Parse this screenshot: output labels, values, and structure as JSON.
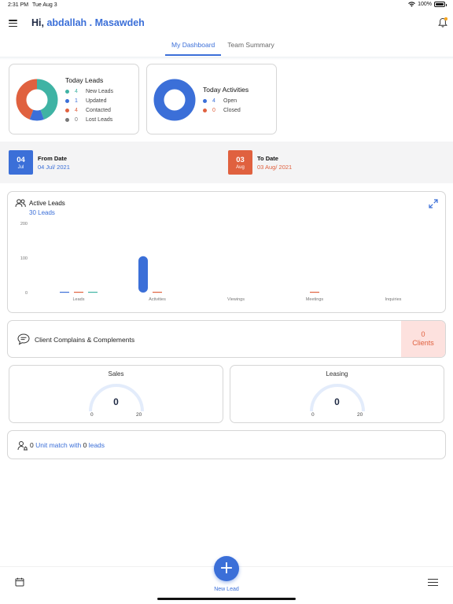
{
  "status_bar": {
    "time": "2:31 PM",
    "date": "Tue Aug 3",
    "battery": "100%"
  },
  "header": {
    "greeting": "Hi,",
    "user_name": "abdallah . Masawdeh"
  },
  "tabs": [
    {
      "label": "My Dashboard",
      "active": true
    },
    {
      "label": "Team Summary",
      "active": false
    }
  ],
  "today_leads": {
    "title": "Today Leads",
    "items": [
      {
        "count": "4",
        "label": "New Leads",
        "color": "#3fb3a4"
      },
      {
        "count": "1",
        "label": "Updated",
        "color": "#3b6fd8"
      },
      {
        "count": "4",
        "label": "Contacted",
        "color": "#e0613f"
      },
      {
        "count": "0",
        "label": "Lost Leads",
        "color": "#777777"
      }
    ]
  },
  "today_activities": {
    "title": "Today Activities",
    "items": [
      {
        "count": "4",
        "label": "Open",
        "color": "#3b6fd8"
      },
      {
        "count": "0",
        "label": "Closed",
        "color": "#e0613f"
      }
    ]
  },
  "from_date": {
    "day": "04",
    "month": "Jul",
    "label": "From Date",
    "value": "04 Jul/ 2021",
    "color": "#3b6fd8"
  },
  "to_date": {
    "day": "03",
    "month": "Aug",
    "label": "To Date",
    "value": "03 Aug/ 2021",
    "color": "#e0613f"
  },
  "active_leads": {
    "title": "Active Leads",
    "subtitle": "30 Leads",
    "chart_data": {
      "type": "bar",
      "categories": [
        "Leads",
        "Activities",
        "Viewings",
        "Meetings",
        "Inquiries"
      ],
      "y_ticks": [
        "200",
        "100",
        "0"
      ],
      "ylim": [
        0,
        200
      ],
      "series": [
        {
          "color": "#3b6fd8",
          "values": [
            4,
            105,
            0,
            0,
            0
          ]
        },
        {
          "color": "#e0613f",
          "values": [
            1,
            1,
            0,
            1,
            0
          ]
        },
        {
          "color": "#3fb3a4",
          "values": [
            4,
            0,
            0,
            0,
            0
          ]
        }
      ]
    }
  },
  "complaints": {
    "label": "Client Complains & Complements",
    "count": "0",
    "unit": "Clients"
  },
  "gauges": [
    {
      "title": "Sales",
      "value": "0",
      "min": "0",
      "max": "20"
    },
    {
      "title": "Leasing",
      "value": "0",
      "min": "0",
      "max": "20"
    }
  ],
  "unit_match": {
    "units": "0",
    "text1": "Unit match with",
    "leads": "0",
    "text2": "leads"
  },
  "bottom_nav": {
    "new_lead_label": "New Lead"
  }
}
